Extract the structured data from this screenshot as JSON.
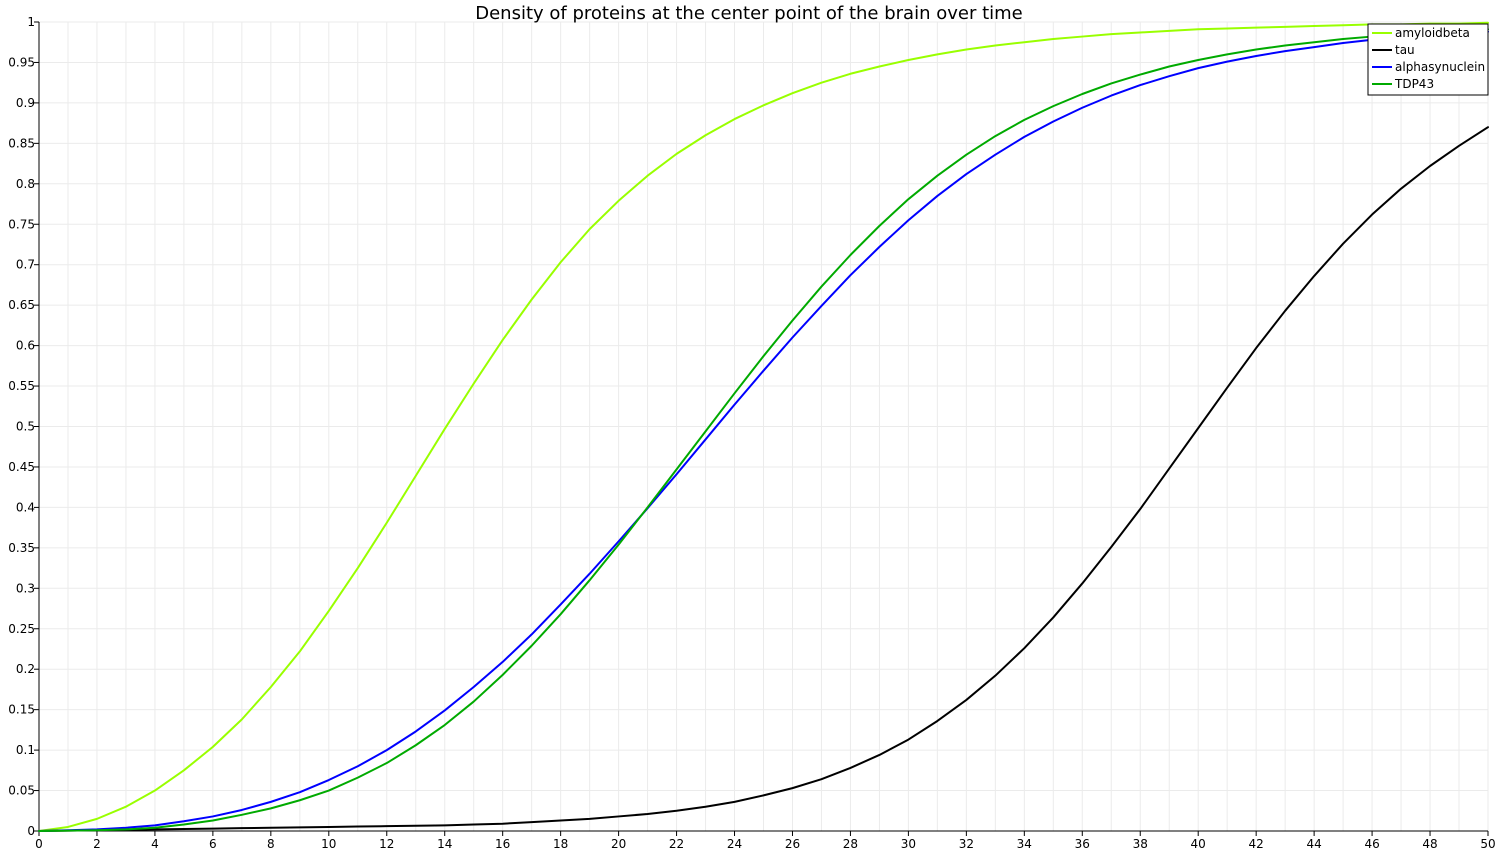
{
  "chart_data": {
    "type": "line",
    "title": "Density of proteins at the center point of the brain over time",
    "xlabel": "",
    "ylabel": "",
    "xlim": [
      0,
      50
    ],
    "ylim": [
      0,
      1
    ],
    "grid": true,
    "legend_position": "top-right",
    "x_ticks": [
      "0",
      "2",
      "4",
      "6",
      "8",
      "10",
      "12",
      "14",
      "16",
      "18",
      "20",
      "22",
      "24",
      "26",
      "28",
      "30",
      "32",
      "34",
      "36",
      "38",
      "40",
      "42",
      "44",
      "46",
      "48",
      "50"
    ],
    "y_ticks": [
      "0",
      "0.05",
      "0.1",
      "0.15",
      "0.2",
      "0.25",
      "0.3",
      "0.35",
      "0.4",
      "0.45",
      "0.5",
      "0.55",
      "0.6",
      "0.65",
      "0.7",
      "0.75",
      "0.8",
      "0.85",
      "0.9",
      "0.95",
      "1"
    ],
    "x": [
      0,
      1,
      2,
      3,
      4,
      5,
      6,
      7,
      8,
      9,
      10,
      11,
      12,
      13,
      14,
      15,
      16,
      17,
      18,
      19,
      20,
      21,
      22,
      23,
      24,
      25,
      26,
      27,
      28,
      29,
      30,
      31,
      32,
      33,
      34,
      35,
      36,
      37,
      38,
      39,
      40,
      41,
      42,
      43,
      44,
      45,
      46,
      47,
      48,
      49,
      50
    ],
    "series": [
      {
        "name": "amyloidbeta",
        "color": "#99ff00",
        "values": [
          0,
          0.005,
          0.015,
          0.03,
          0.05,
          0.075,
          0.104,
          0.138,
          0.178,
          0.222,
          0.272,
          0.325,
          0.381,
          0.439,
          0.497,
          0.553,
          0.607,
          0.657,
          0.703,
          0.744,
          0.779,
          0.81,
          0.837,
          0.86,
          0.88,
          0.897,
          0.912,
          0.925,
          0.936,
          0.945,
          0.953,
          0.96,
          0.966,
          0.971,
          0.975,
          0.979,
          0.982,
          0.985,
          0.987,
          0.989,
          0.991,
          0.992,
          0.993,
          0.994,
          0.995,
          0.996,
          0.997,
          0.997,
          0.998,
          0.998,
          0.999
        ]
      },
      {
        "name": "tau",
        "color": "#000000",
        "values": [
          0,
          0.0005,
          0.001,
          0.0015,
          0.002,
          0.0025,
          0.003,
          0.0035,
          0.004,
          0.0045,
          0.005,
          0.0055,
          0.006,
          0.0065,
          0.007,
          0.008,
          0.009,
          0.011,
          0.013,
          0.015,
          0.018,
          0.021,
          0.025,
          0.03,
          0.036,
          0.044,
          0.053,
          0.064,
          0.078,
          0.094,
          0.113,
          0.136,
          0.162,
          0.192,
          0.226,
          0.264,
          0.306,
          0.351,
          0.398,
          0.448,
          0.498,
          0.548,
          0.597,
          0.643,
          0.686,
          0.726,
          0.762,
          0.794,
          0.822,
          0.847,
          0.87
        ]
      },
      {
        "name": "alphasynuclein",
        "color": "#0000ff",
        "values": [
          0,
          0.001,
          0.002,
          0.004,
          0.007,
          0.012,
          0.018,
          0.026,
          0.036,
          0.048,
          0.063,
          0.08,
          0.1,
          0.123,
          0.149,
          0.178,
          0.209,
          0.243,
          0.28,
          0.318,
          0.358,
          0.399,
          0.441,
          0.484,
          0.527,
          0.569,
          0.61,
          0.649,
          0.687,
          0.722,
          0.755,
          0.785,
          0.812,
          0.836,
          0.858,
          0.877,
          0.894,
          0.909,
          0.922,
          0.933,
          0.943,
          0.951,
          0.958,
          0.964,
          0.969,
          0.974,
          0.978,
          0.981,
          0.984,
          0.986,
          0.988
        ]
      },
      {
        "name": "TDP43",
        "color": "#00aa00",
        "values": [
          0,
          0.0005,
          0.001,
          0.002,
          0.004,
          0.008,
          0.013,
          0.02,
          0.028,
          0.038,
          0.05,
          0.066,
          0.084,
          0.106,
          0.131,
          0.16,
          0.193,
          0.229,
          0.268,
          0.31,
          0.354,
          0.4,
          0.447,
          0.494,
          0.541,
          0.587,
          0.631,
          0.673,
          0.712,
          0.748,
          0.781,
          0.81,
          0.836,
          0.859,
          0.879,
          0.896,
          0.911,
          0.924,
          0.935,
          0.945,
          0.953,
          0.96,
          0.966,
          0.971,
          0.975,
          0.979,
          0.982,
          0.985,
          0.987,
          0.989,
          0.991
        ]
      }
    ]
  }
}
